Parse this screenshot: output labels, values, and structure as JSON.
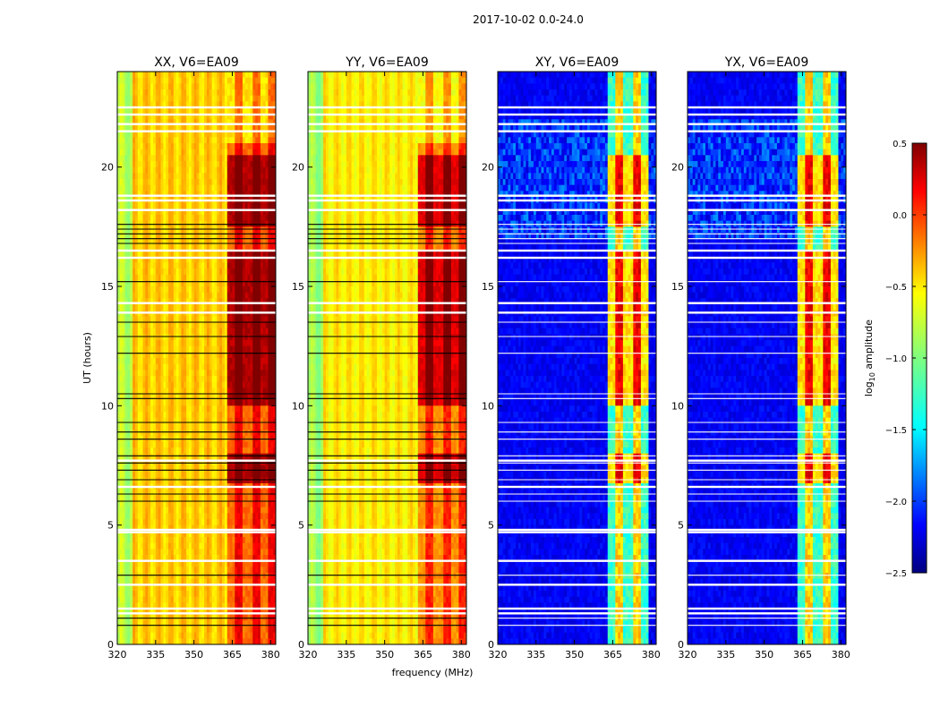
{
  "chart_data": {
    "type": "heatmap",
    "title": "2017-10-02 0.0-24.0",
    "xlabel": "frequency (MHz)",
    "ylabel": "UT (hours)",
    "xlim": [
      320,
      382
    ],
    "ylim": [
      0,
      24
    ],
    "xticks": [
      320,
      335,
      350,
      365,
      380
    ],
    "yticks": [
      0,
      5,
      10,
      15,
      20
    ],
    "panels": [
      {
        "id": "XX",
        "title": "XX, V6=EA09",
        "kind": "parallel",
        "rfi_band_mhz": [
          363,
          382
        ],
        "strength": 1.0
      },
      {
        "id": "YY",
        "title": "YY, V6=EA09",
        "kind": "parallel",
        "rfi_band_mhz": [
          363,
          382
        ],
        "strength": 0.95
      },
      {
        "id": "XY",
        "title": "XY, V6=EA09",
        "kind": "cross",
        "rfi_band_mhz": [
          363,
          379
        ],
        "strength": 1.0
      },
      {
        "id": "YX",
        "title": "YX, V6=EA09",
        "kind": "cross",
        "rfi_band_mhz": [
          363,
          379
        ],
        "strength": 1.0
      }
    ],
    "flagged_hours_black": [
      0.8,
      1.1,
      2.9,
      6.0,
      6.3,
      6.9,
      7.3,
      7.6,
      7.9,
      8.6,
      8.9,
      9.3,
      10.3,
      10.5,
      12.2,
      12.9,
      13.5,
      15.2,
      16.8,
      17.0,
      17.2,
      17.4,
      17.6
    ],
    "flagged_hours_white": [
      1.3,
      1.5,
      2.5,
      3.5,
      4.7,
      4.8,
      6.6,
      7.7,
      13.9,
      14.3,
      16.2,
      16.5,
      18.2,
      18.6,
      18.8,
      21.5,
      21.8,
      22.2,
      22.5
    ],
    "colorbar": {
      "label": "log10 amplitude",
      "range": [
        -2.5,
        0.5
      ],
      "ticks": [
        "0.5",
        "0.0",
        "−0.5",
        "−1.0",
        "−1.5",
        "−2.0",
        "−2.5"
      ],
      "colormap": "jet"
    }
  }
}
